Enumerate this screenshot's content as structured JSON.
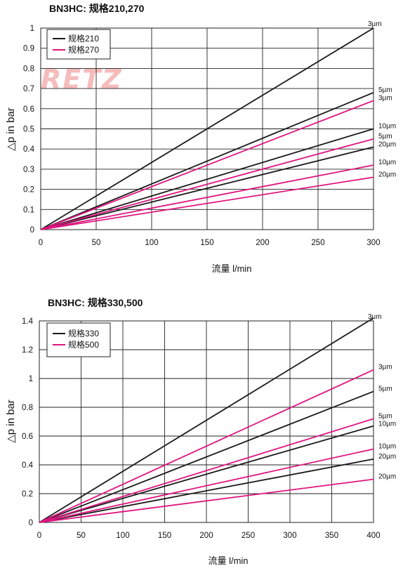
{
  "chart_data": [
    {
      "type": "line",
      "title": "BN3HC: 规格210,270",
      "xlabel": "流量  l/min",
      "ylabel": "△p in bar",
      "xlim": [
        0,
        300
      ],
      "ylim": [
        0,
        1
      ],
      "xticks": [
        "0",
        "50",
        "100",
        "150",
        "200",
        "250",
        "300"
      ],
      "yticks": [
        "0",
        "0.1",
        "0.2",
        "0.3",
        "0.4",
        "0.5",
        "0.6",
        "0.7",
        "0.8",
        "0.9",
        "1"
      ],
      "grid": true,
      "legend_position": "top-left",
      "legend": [
        {
          "label": "规格210",
          "color": "#1a1a1a"
        },
        {
          "label": "规格270",
          "color": "#e0147f"
        }
      ],
      "series": [
        {
          "group": "规格210",
          "label": "3µm",
          "color": "#1a1a1a",
          "x": [
            0,
            300
          ],
          "y": [
            0,
            1.0
          ]
        },
        {
          "group": "规格210",
          "label": "5µm",
          "color": "#1a1a1a",
          "x": [
            0,
            300
          ],
          "y": [
            0,
            0.68
          ]
        },
        {
          "group": "规格210",
          "label": "10µm",
          "color": "#1a1a1a",
          "x": [
            0,
            300
          ],
          "y": [
            0,
            0.5
          ]
        },
        {
          "group": "规格210",
          "label": "20µm",
          "color": "#1a1a1a",
          "x": [
            0,
            300
          ],
          "y": [
            0,
            0.41
          ]
        },
        {
          "group": "规格270",
          "label": "3µm",
          "color": "#e0147f",
          "x": [
            0,
            300
          ],
          "y": [
            0,
            0.64
          ]
        },
        {
          "group": "规格270",
          "label": "5µm",
          "color": "#e0147f",
          "x": [
            0,
            300
          ],
          "y": [
            0,
            0.45
          ]
        },
        {
          "group": "规格270",
          "label": "10µm",
          "color": "#e0147f",
          "x": [
            0,
            300
          ],
          "y": [
            0,
            0.32
          ]
        },
        {
          "group": "规格270",
          "label": "20µm",
          "color": "#e0147f",
          "x": [
            0,
            300
          ],
          "y": [
            0,
            0.26
          ]
        }
      ],
      "watermark": "RETZ"
    },
    {
      "type": "line",
      "title": "BN3HC: 规格330,500",
      "xlabel": "流量  l/min",
      "ylabel": "△p in bar",
      "xlim": [
        0,
        400
      ],
      "ylim": [
        0,
        1.4
      ],
      "xticks": [
        "0",
        "50",
        "100",
        "150",
        "200",
        "250",
        "300",
        "350",
        "400"
      ],
      "yticks": [
        "0",
        "0.2",
        "0.4",
        "0.6",
        "0.8",
        "1",
        "1.2",
        "1.4"
      ],
      "grid": true,
      "legend_position": "top-left",
      "legend": [
        {
          "label": "规格330",
          "color": "#1a1a1a"
        },
        {
          "label": "规格500",
          "color": "#e0147f"
        }
      ],
      "series": [
        {
          "group": "规格330",
          "label": "3µm",
          "color": "#1a1a1a",
          "x": [
            0,
            400
          ],
          "y": [
            0,
            1.42
          ]
        },
        {
          "group": "规格330",
          "label": "5µm",
          "color": "#1a1a1a",
          "x": [
            0,
            400
          ],
          "y": [
            0,
            0.91
          ]
        },
        {
          "group": "规格330",
          "label": "10µm",
          "color": "#1a1a1a",
          "x": [
            0,
            400
          ],
          "y": [
            0,
            0.67
          ]
        },
        {
          "group": "规格330",
          "label": "20µm",
          "color": "#1a1a1a",
          "x": [
            0,
            400
          ],
          "y": [
            0,
            0.44
          ]
        },
        {
          "group": "规格500",
          "label": "3µm",
          "color": "#e0147f",
          "x": [
            0,
            400
          ],
          "y": [
            0,
            1.06
          ]
        },
        {
          "group": "规格500",
          "label": "5µm",
          "color": "#e0147f",
          "x": [
            0,
            400
          ],
          "y": [
            0,
            0.72
          ]
        },
        {
          "group": "规格500",
          "label": "10µm",
          "color": "#e0147f",
          "x": [
            0,
            400
          ],
          "y": [
            0,
            0.51
          ]
        },
        {
          "group": "规格500",
          "label": "20µm",
          "color": "#e0147f",
          "x": [
            0,
            400
          ],
          "y": [
            0,
            0.3
          ]
        }
      ]
    }
  ]
}
